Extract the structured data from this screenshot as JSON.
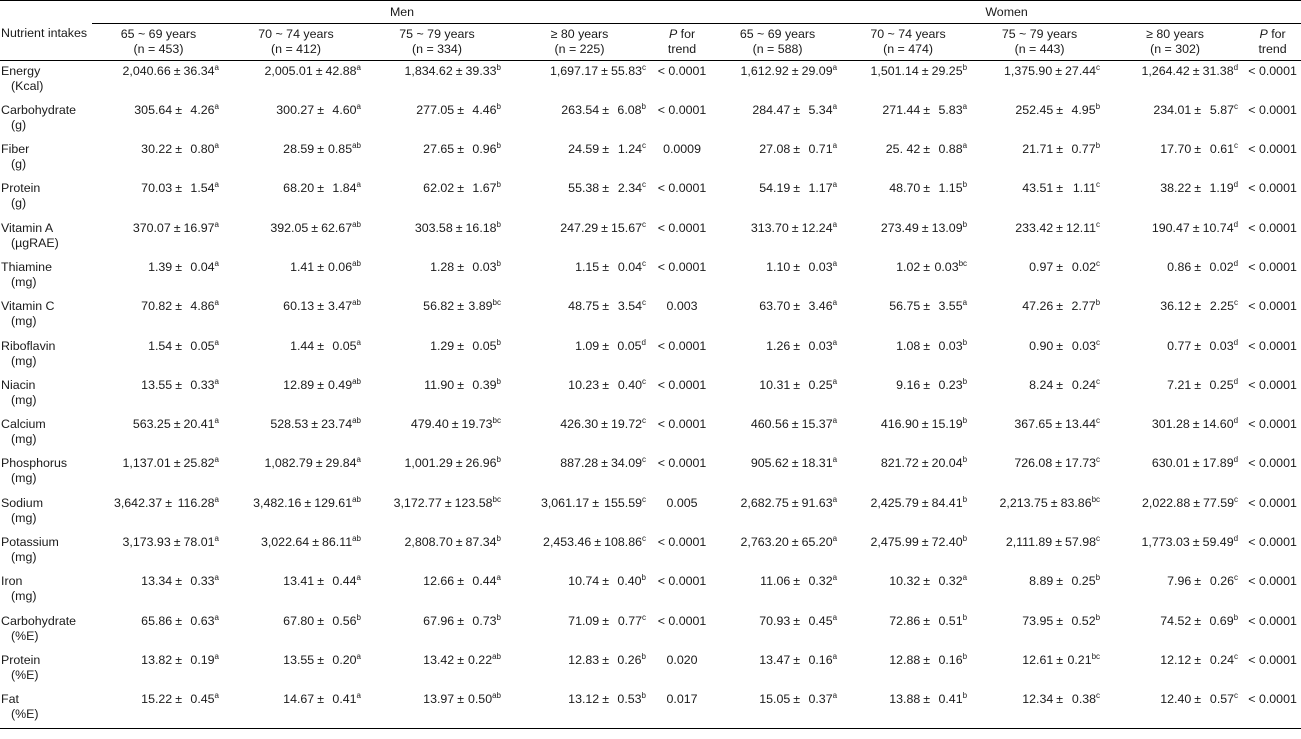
{
  "header": {
    "nutrient_label": "Nutrient intakes",
    "men_label": "Men",
    "women_label": "Women",
    "p_italic": "P",
    "p_rest": " for",
    "p_line2": "trend",
    "groups": [
      {
        "age": "65 ~ 69 years",
        "n": "(n = 453)"
      },
      {
        "age": "70 ~ 74 years",
        "n": "(n = 412)"
      },
      {
        "age": "75 ~ 79 years",
        "n": "(n = 334)"
      },
      {
        "age": "≥ 80 years",
        "n": "(n = 225)"
      },
      {
        "age": "65 ~ 69 years",
        "n": "(n = 588)"
      },
      {
        "age": "70 ~ 74 years",
        "n": "(n = 474)"
      },
      {
        "age": "75 ~ 79 years",
        "n": "(n = 443)"
      },
      {
        "age": "≥ 80 years",
        "n": "(n = 302)"
      }
    ]
  },
  "pm": "±",
  "rows": [
    {
      "name": "Energy",
      "unit": "(Kcal)",
      "men": [
        [
          "2,040.66",
          "36.34",
          "a"
        ],
        [
          "2,005.01",
          "42.88",
          "a"
        ],
        [
          "1,834.62",
          "39.33",
          "b"
        ],
        [
          "1,697.17",
          "55.83",
          "c"
        ]
      ],
      "men_p": "< 0.0001",
      "women": [
        [
          "1,612.92",
          "29.09",
          "a"
        ],
        [
          "1,501.14",
          "29.25",
          "b"
        ],
        [
          "1,375.90",
          "27.44",
          "c"
        ],
        [
          "1,264.42",
          "31.38",
          "d"
        ]
      ],
      "women_p": "< 0.0001"
    },
    {
      "name": "Carbohydrate",
      "unit": "(g)",
      "men": [
        [
          "305.64",
          "4.26",
          "a"
        ],
        [
          "300.27",
          "4.60",
          "a"
        ],
        [
          "277.05",
          "4.46",
          "b"
        ],
        [
          "263.54",
          "6.08",
          "b"
        ]
      ],
      "men_p": "< 0.0001",
      "women": [
        [
          "284.47",
          "5.34",
          "a"
        ],
        [
          "271.44",
          "5.83",
          "a"
        ],
        [
          "252.45",
          "4.95",
          "b"
        ],
        [
          "234.01",
          "5.87",
          "c"
        ]
      ],
      "women_p": "< 0.0001"
    },
    {
      "name": "Fiber",
      "unit": "(g)",
      "men": [
        [
          "30.22",
          "0.80",
          "a"
        ],
        [
          "28.59",
          "0.85",
          "ab"
        ],
        [
          "27.65",
          "0.96",
          "b"
        ],
        [
          "24.59",
          "1.24",
          "c"
        ]
      ],
      "men_p": "0.0009",
      "women": [
        [
          "27.08",
          "0.71",
          "a"
        ],
        [
          "25. 42",
          "0.88",
          "a"
        ],
        [
          "21.71",
          "0.77",
          "b"
        ],
        [
          "17.70",
          "0.61",
          "c"
        ]
      ],
      "women_p": "< 0.0001"
    },
    {
      "name": "Protein",
      "unit": "(g)",
      "men": [
        [
          "70.03",
          "1.54",
          "a"
        ],
        [
          "68.20",
          "1.84",
          "a"
        ],
        [
          "62.02",
          "1.67",
          "b"
        ],
        [
          "55.38",
          "2.34",
          "c"
        ]
      ],
      "men_p": "< 0.0001",
      "women": [
        [
          "54.19",
          "1.17",
          "a"
        ],
        [
          "48.70",
          "1.15",
          "b"
        ],
        [
          "43.51",
          "1.11",
          "c"
        ],
        [
          "38.22",
          "1.19",
          "d"
        ]
      ],
      "women_p": "< 0.0001"
    },
    {
      "name": "Vitamin A",
      "unit": "(µgRAE)",
      "men": [
        [
          "370.07",
          "16.97",
          "a"
        ],
        [
          "392.05",
          "62.67",
          "ab"
        ],
        [
          "303.58",
          "16.18",
          "b"
        ],
        [
          "247.29",
          "15.67",
          "c"
        ]
      ],
      "men_p": "< 0.0001",
      "women": [
        [
          "313.70",
          "12.24",
          "a"
        ],
        [
          "273.49",
          "13.09",
          "b"
        ],
        [
          "233.42",
          "12.11",
          "c"
        ],
        [
          "190.47",
          "10.74",
          "d"
        ]
      ],
      "women_p": "< 0.0001"
    },
    {
      "name": "Thiamine",
      "unit": "(mg)",
      "men": [
        [
          "1.39",
          "0.04",
          "a"
        ],
        [
          "1.41",
          "0.06",
          "ab"
        ],
        [
          "1.28",
          "0.03",
          "b"
        ],
        [
          "1.15",
          "0.04",
          "c"
        ]
      ],
      "men_p": "< 0.0001",
      "women": [
        [
          "1.10",
          "0.03",
          "a"
        ],
        [
          "1.02",
          "0.03",
          "bc"
        ],
        [
          "0.97",
          "0.02",
          "c"
        ],
        [
          "0.86",
          "0.02",
          "d"
        ]
      ],
      "women_p": "< 0.0001"
    },
    {
      "name": "Vitamin C",
      "unit": "(mg)",
      "men": [
        [
          "70.82",
          "4.86",
          "a"
        ],
        [
          "60.13",
          "3.47",
          "ab"
        ],
        [
          "56.82",
          "3.89",
          "bc"
        ],
        [
          "48.75",
          "3.54",
          "c"
        ]
      ],
      "men_p": "0.003",
      "women": [
        [
          "63.70",
          "3.46",
          "a"
        ],
        [
          "56.75",
          "3.55",
          "a"
        ],
        [
          "47.26",
          "2.77",
          "b"
        ],
        [
          "36.12",
          "2.25",
          "c"
        ]
      ],
      "women_p": "< 0.0001"
    },
    {
      "name": "Riboflavin",
      "unit": "(mg)",
      "men": [
        [
          "1.54",
          "0.05",
          "a"
        ],
        [
          "1.44",
          "0.05",
          "a"
        ],
        [
          "1.29",
          "0.05",
          "b"
        ],
        [
          "1.09",
          "0.05",
          "d"
        ]
      ],
      "men_p": "< 0.0001",
      "women": [
        [
          "1.26",
          "0.03",
          "a"
        ],
        [
          "1.08",
          "0.03",
          "b"
        ],
        [
          "0.90",
          "0.03",
          "c"
        ],
        [
          "0.77",
          "0.03",
          "d"
        ]
      ],
      "women_p": "< 0.0001"
    },
    {
      "name": "Niacin",
      "unit": "(mg)",
      "men": [
        [
          "13.55",
          "0.33",
          "a"
        ],
        [
          "12.89",
          "0.49",
          "ab"
        ],
        [
          "11.90",
          "0.39",
          "b"
        ],
        [
          "10.23",
          "0.40",
          "c"
        ]
      ],
      "men_p": "< 0.0001",
      "women": [
        [
          "10.31",
          "0.25",
          "a"
        ],
        [
          "9.16",
          "0.23",
          "b"
        ],
        [
          "8.24",
          "0.24",
          "c"
        ],
        [
          "7.21",
          "0.25",
          "d"
        ]
      ],
      "women_p": "< 0.0001"
    },
    {
      "name": "Calcium",
      "unit": "(mg)",
      "men": [
        [
          "563.25",
          "20.41",
          "a"
        ],
        [
          "528.53",
          "23.74",
          "ab"
        ],
        [
          "479.40",
          "19.73",
          "bc"
        ],
        [
          "426.30",
          "19.72",
          "c"
        ]
      ],
      "men_p": "< 0.0001",
      "women": [
        [
          "460.56",
          "15.37",
          "a"
        ],
        [
          "416.90",
          "15.19",
          "b"
        ],
        [
          "367.65",
          "13.44",
          "c"
        ],
        [
          "301.28",
          "14.60",
          "d"
        ]
      ],
      "women_p": "< 0.0001"
    },
    {
      "name": "Phosphorus",
      "unit": "(mg)",
      "men": [
        [
          "1,137.01",
          "25.82",
          "a"
        ],
        [
          "1,082.79",
          "29.84",
          "a"
        ],
        [
          "1,001.29",
          "26.96",
          "b"
        ],
        [
          "887.28",
          "34.09",
          "c"
        ]
      ],
      "men_p": "< 0.0001",
      "women": [
        [
          "905.62",
          "18.31",
          "a"
        ],
        [
          "821.72",
          "20.04",
          "b"
        ],
        [
          "726.08",
          "17.73",
          "c"
        ],
        [
          "630.01",
          "17.89",
          "d"
        ]
      ],
      "women_p": "< 0.0001"
    },
    {
      "name": "Sodium",
      "unit": "(mg)",
      "men": [
        [
          "3,642.37",
          "116.28",
          "a"
        ],
        [
          "3,482.16",
          "129.61",
          "ab"
        ],
        [
          "3,172.77",
          "123.58",
          "bc"
        ],
        [
          "3,061.17",
          "155.59",
          "c"
        ]
      ],
      "men_p": "0.005",
      "women": [
        [
          "2,682.75",
          "91.63",
          "a"
        ],
        [
          "2,425.79",
          "84.41",
          "b"
        ],
        [
          "2,213.75",
          "83.86",
          "bc"
        ],
        [
          "2,022.88",
          "77.59",
          "c"
        ]
      ],
      "women_p": "< 0.0001"
    },
    {
      "name": "Potassium",
      "unit": "(mg)",
      "men": [
        [
          "3,173.93",
          "78.01",
          "a"
        ],
        [
          "3,022.64",
          "86.11",
          "ab"
        ],
        [
          "2,808.70",
          "87.34",
          "b"
        ],
        [
          "2,453.46",
          "108.86",
          "c"
        ]
      ],
      "men_p": "< 0.0001",
      "women": [
        [
          "2,763.20",
          "65.20",
          "a"
        ],
        [
          "2,475.99",
          "72.40",
          "b"
        ],
        [
          "2,111.89",
          "57.98",
          "c"
        ],
        [
          "1,773.03",
          "59.49",
          "d"
        ]
      ],
      "women_p": "< 0.0001"
    },
    {
      "name": "Iron",
      "unit": "(mg)",
      "men": [
        [
          "13.34",
          "0.33",
          "a"
        ],
        [
          "13.41",
          "0.44",
          "a"
        ],
        [
          "12.66",
          "0.44",
          "a"
        ],
        [
          "10.74",
          "0.40",
          "b"
        ]
      ],
      "men_p": "< 0.0001",
      "women": [
        [
          "11.06",
          "0.32",
          "a"
        ],
        [
          "10.32",
          "0.32",
          "a"
        ],
        [
          "8.89",
          "0.25",
          "b"
        ],
        [
          "7.96",
          "0.26",
          "c"
        ]
      ],
      "women_p": "< 0.0001"
    },
    {
      "name": "Carbohydrate",
      "unit": "(%E)",
      "men": [
        [
          "65.86",
          "0.63",
          "a"
        ],
        [
          "67.80",
          "0.56",
          "b"
        ],
        [
          "67.96",
          "0.73",
          "b"
        ],
        [
          "71.09",
          "0.77",
          "c"
        ]
      ],
      "men_p": "< 0.0001",
      "women": [
        [
          "70.93",
          "0.45",
          "a"
        ],
        [
          "72.86",
          "0.51",
          "b"
        ],
        [
          "73.95",
          "0.52",
          "b"
        ],
        [
          "74.52",
          "0.69",
          "b"
        ]
      ],
      "women_p": "< 0.0001"
    },
    {
      "name": "Protein",
      "unit": "(%E)",
      "men": [
        [
          "13.82",
          "0.19",
          "a"
        ],
        [
          "13.55",
          "0.20",
          "a"
        ],
        [
          "13.42",
          "0.22",
          "ab"
        ],
        [
          "12.83",
          "0.26",
          "b"
        ]
      ],
      "men_p": "0.020",
      "women": [
        [
          "13.47",
          "0.16",
          "a"
        ],
        [
          "12.88",
          "0.16",
          "b"
        ],
        [
          "12.61",
          "0.21",
          "bc"
        ],
        [
          "12.12",
          "0.24",
          "c"
        ]
      ],
      "women_p": "< 0.0001"
    },
    {
      "name": "Fat",
      "unit": "(%E)",
      "men": [
        [
          "15.22",
          "0.45",
          "a"
        ],
        [
          "14.67",
          "0.41",
          "a"
        ],
        [
          "13.97",
          "0.50",
          "ab"
        ],
        [
          "13.12",
          "0.53",
          "b"
        ]
      ],
      "men_p": "0.017",
      "women": [
        [
          "15.05",
          "0.37",
          "a"
        ],
        [
          "13.88",
          "0.41",
          "b"
        ],
        [
          "12.34",
          "0.38",
          "c"
        ],
        [
          "12.40",
          "0.57",
          "c"
        ]
      ],
      "women_p": "< 0.0001"
    }
  ]
}
